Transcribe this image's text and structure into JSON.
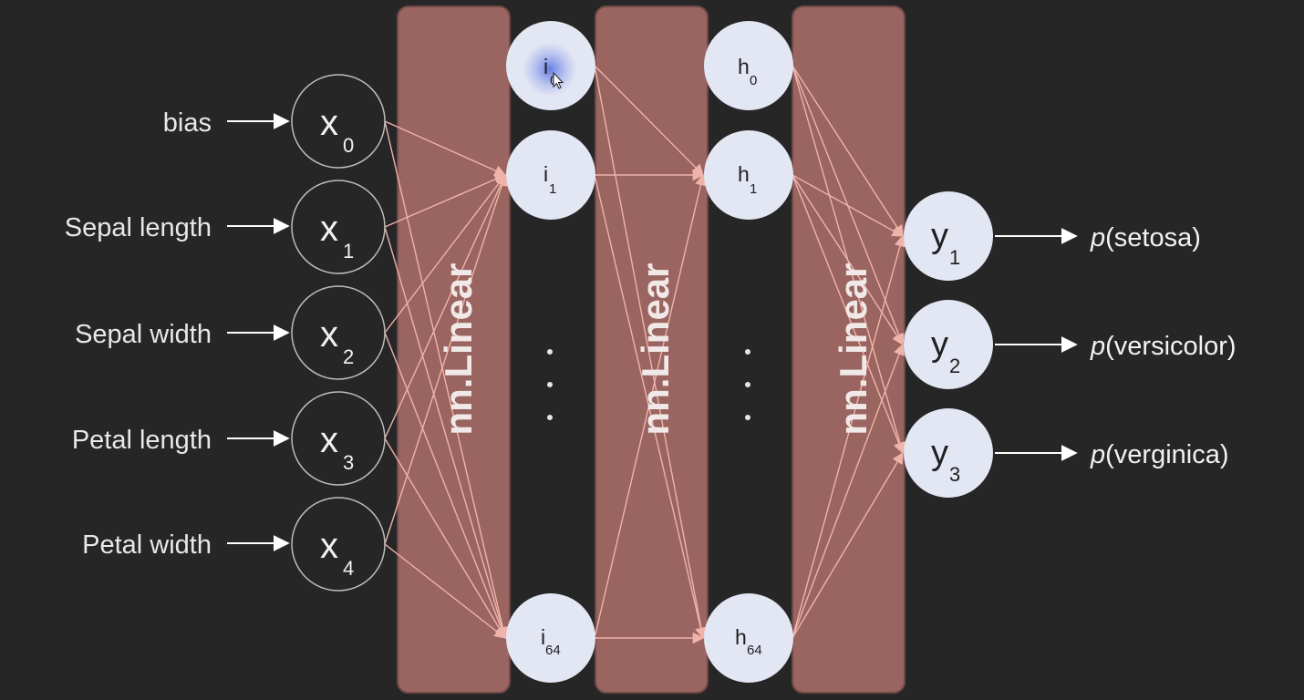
{
  "colors": {
    "background": "#262626",
    "band_fill": "#9a6460",
    "band_stroke": "#6e4a47",
    "node_fill": "#e3e6f3",
    "edge": "#f0b3aa",
    "highlight": "#6f86e6"
  },
  "inputs": [
    {
      "label": "bias",
      "var": "x",
      "sub": "0"
    },
    {
      "label": "Sepal length",
      "var": "x",
      "sub": "1"
    },
    {
      "label": "Sepal width",
      "var": "x",
      "sub": "2"
    },
    {
      "label": "Petal length",
      "var": "x",
      "sub": "3"
    },
    {
      "label": "Petal width",
      "var": "x",
      "sub": "4"
    }
  ],
  "layers": [
    {
      "label": "nn.Linear"
    },
    {
      "label": "nn.Linear"
    },
    {
      "label": "nn.Linear"
    }
  ],
  "hidden1": [
    {
      "var": "i",
      "sub": "0",
      "highlighted": true
    },
    {
      "var": "i",
      "sub": "1"
    },
    {
      "var": "i",
      "sub": "64"
    }
  ],
  "hidden2": [
    {
      "var": "h",
      "sub": "0"
    },
    {
      "var": "h",
      "sub": "1"
    },
    {
      "var": "h",
      "sub": "64"
    }
  ],
  "outputs": [
    {
      "var": "y",
      "sub": "1",
      "prob_prefix": "p",
      "prob_label": "(setosa)"
    },
    {
      "var": "y",
      "sub": "2",
      "prob_prefix": "p",
      "prob_label": "(versicolor)"
    },
    {
      "var": "y",
      "sub": "3",
      "prob_prefix": "p",
      "prob_label": "(verginica)"
    }
  ],
  "icons": {
    "cursor": "mouse-pointer-icon"
  }
}
